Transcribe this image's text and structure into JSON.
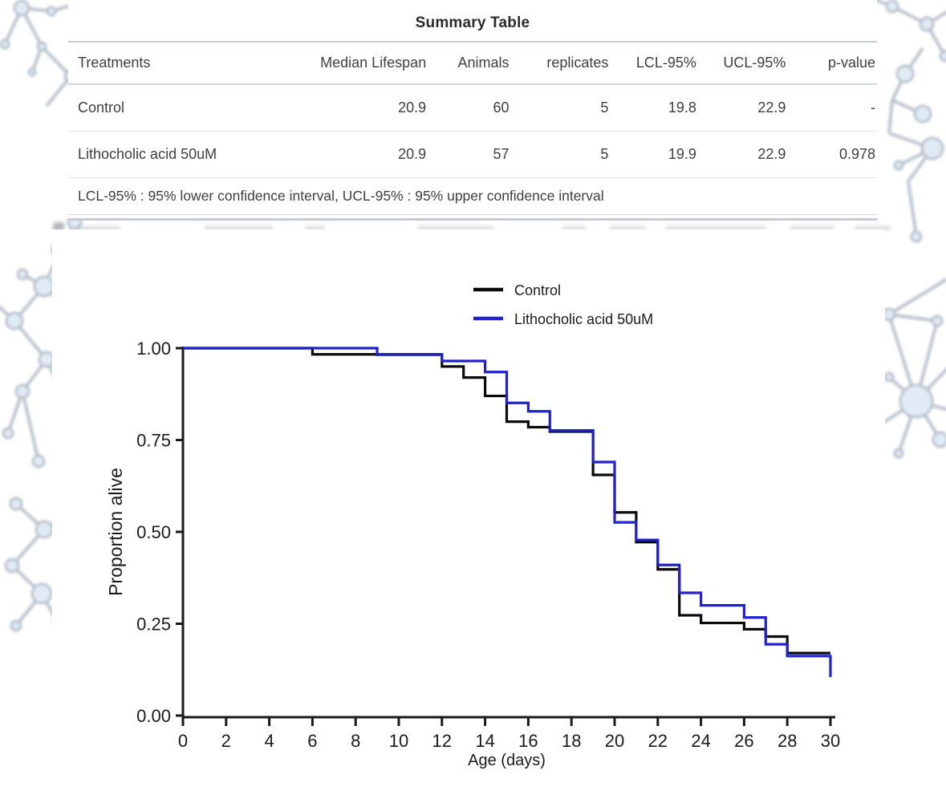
{
  "table": {
    "title": "Summary Table",
    "columns": [
      "Treatments",
      "Median Lifespan",
      "Animals",
      "replicates",
      "LCL-95%",
      "UCL-95%",
      "p-value"
    ],
    "rows": [
      [
        "Control",
        "20.9",
        "60",
        "5",
        "19.8",
        "22.9",
        "-"
      ],
      [
        "Lithocholic acid 50uM",
        "20.9",
        "57",
        "5",
        "19.9",
        "22.9",
        "0.978"
      ]
    ],
    "footnote": "LCL-95% : 95% lower confidence interval, UCL-95% : 95% upper confidence interval"
  },
  "chart_data": {
    "type": "line",
    "variant": "kaplan_meier_step_survival",
    "title": "",
    "xlabel": "Age (days)",
    "ylabel": "Proportion alive",
    "xlim": [
      0,
      30
    ],
    "ylim": [
      0,
      1
    ],
    "xticks": [
      0,
      2,
      4,
      6,
      8,
      10,
      12,
      14,
      16,
      18,
      20,
      22,
      24,
      26,
      28,
      30
    ],
    "ytick_labels": [
      "0.00",
      "0.25",
      "0.50",
      "0.75",
      "1.00"
    ],
    "grid": false,
    "legend_position": "top-center",
    "series": [
      {
        "name": "Control",
        "color": "#0b0b0b",
        "steps": [
          [
            0,
            1.0
          ],
          [
            6,
            0.983
          ],
          [
            12,
            0.95
          ],
          [
            13,
            0.92
          ],
          [
            14,
            0.87
          ],
          [
            15,
            0.8
          ],
          [
            16,
            0.785
          ],
          [
            17,
            0.773
          ],
          [
            19,
            0.655
          ],
          [
            20,
            0.553
          ],
          [
            21,
            0.472
          ],
          [
            22,
            0.398
          ],
          [
            23,
            0.273
          ],
          [
            24,
            0.252
          ],
          [
            26,
            0.235
          ],
          [
            27,
            0.215
          ],
          [
            28,
            0.17
          ],
          [
            30,
            0.17
          ]
        ]
      },
      {
        "name": "Lithocholic acid 50uM",
        "color": "#2121ce",
        "steps": [
          [
            0,
            1.0
          ],
          [
            9,
            0.982
          ],
          [
            12,
            0.965
          ],
          [
            14,
            0.935
          ],
          [
            15,
            0.851
          ],
          [
            16,
            0.828
          ],
          [
            17,
            0.776
          ],
          [
            19,
            0.69
          ],
          [
            20,
            0.526
          ],
          [
            21,
            0.478
          ],
          [
            22,
            0.41
          ],
          [
            23,
            0.334
          ],
          [
            24,
            0.3
          ],
          [
            26,
            0.267
          ],
          [
            27,
            0.194
          ],
          [
            28,
            0.162
          ],
          [
            30,
            0.105
          ]
        ]
      }
    ]
  },
  "colors": {
    "accent_blue": "#2121ce",
    "series_black": "#0b0b0b",
    "table_rule": "#c9ced4",
    "text": "#3f3f3f"
  }
}
